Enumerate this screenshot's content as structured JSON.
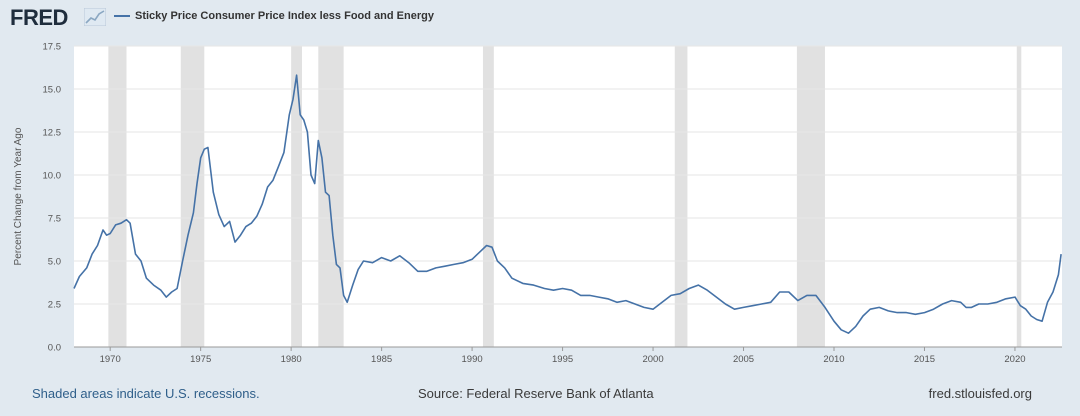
{
  "header": {
    "logo_text": "FRED",
    "logo_icon": "trend-line-icon",
    "legend_label": "Sticky Price Consumer Price Index less Food and Energy"
  },
  "footer": {
    "recession_note": "Shaded areas indicate U.S. recessions.",
    "source": "Source: Federal Reserve Bank of Atlanta",
    "site": "fred.stlouisfed.org"
  },
  "colors": {
    "series": "#4572a7",
    "recession": "#e1e1e1",
    "grid": "#e6e6e6",
    "background": "#e1e9f0",
    "plot_background": "#ffffff"
  },
  "chart_data": {
    "type": "line",
    "title": "",
    "ylabel": "Percent Change from Year Ago",
    "xlabel": "",
    "xlim": [
      1968,
      2022.6
    ],
    "ylim": [
      0,
      17.5
    ],
    "y_ticks": [
      "0.0",
      "2.5",
      "5.0",
      "7.5",
      "10.0",
      "12.5",
      "15.0",
      "17.5"
    ],
    "x_ticks": [
      "1970",
      "1975",
      "1980",
      "1985",
      "1990",
      "1995",
      "2000",
      "2005",
      "2010",
      "2015",
      "2020"
    ],
    "grid": "horizontal",
    "recessions": [
      [
        1969.9,
        1970.9
      ],
      [
        1973.9,
        1975.2
      ],
      [
        1980.0,
        1980.6
      ],
      [
        1981.5,
        1982.9
      ],
      [
        1990.6,
        1991.2
      ],
      [
        2001.2,
        2001.9
      ],
      [
        2007.95,
        2009.5
      ],
      [
        2020.1,
        2020.35
      ]
    ],
    "series": [
      {
        "name": "Sticky Price Consumer Price Index less Food and Energy",
        "x": [
          1968.0,
          1968.3,
          1968.7,
          1969.0,
          1969.3,
          1969.6,
          1969.8,
          1970.0,
          1970.3,
          1970.6,
          1970.9,
          1971.1,
          1971.4,
          1971.7,
          1972.0,
          1972.4,
          1972.8,
          1973.1,
          1973.4,
          1973.7,
          1974.0,
          1974.3,
          1974.6,
          1974.8,
          1975.0,
          1975.2,
          1975.4,
          1975.7,
          1976.0,
          1976.3,
          1976.6,
          1976.9,
          1977.2,
          1977.5,
          1977.8,
          1978.1,
          1978.4,
          1978.7,
          1979.0,
          1979.3,
          1979.6,
          1979.9,
          1980.1,
          1980.3,
          1980.5,
          1980.7,
          1980.9,
          1981.1,
          1981.3,
          1981.5,
          1981.7,
          1981.9,
          1982.1,
          1982.3,
          1982.5,
          1982.7,
          1982.9,
          1983.1,
          1983.4,
          1983.7,
          1984.0,
          1984.5,
          1985.0,
          1985.5,
          1986.0,
          1986.5,
          1987.0,
          1987.5,
          1988.0,
          1988.5,
          1989.0,
          1989.5,
          1990.0,
          1990.4,
          1990.8,
          1991.1,
          1991.4,
          1991.8,
          1992.2,
          1992.8,
          1993.4,
          1994.0,
          1994.5,
          1995.0,
          1995.5,
          1996.0,
          1996.5,
          1997.0,
          1997.5,
          1998.0,
          1998.5,
          1999.0,
          1999.5,
          2000.0,
          2000.5,
          2001.0,
          2001.5,
          2002.0,
          2002.5,
          2003.0,
          2003.5,
          2004.0,
          2004.5,
          2005.0,
          2005.5,
          2006.0,
          2006.5,
          2007.0,
          2007.5,
          2008.0,
          2008.5,
          2009.0,
          2009.5,
          2010.0,
          2010.4,
          2010.8,
          2011.2,
          2011.6,
          2012.0,
          2012.5,
          2013.0,
          2013.5,
          2014.0,
          2014.5,
          2015.0,
          2015.5,
          2016.0,
          2016.5,
          2017.0,
          2017.3,
          2017.6,
          2018.0,
          2018.5,
          2019.0,
          2019.5,
          2020.0,
          2020.3,
          2020.6,
          2020.9,
          2021.2,
          2021.5,
          2021.8,
          2022.1,
          2022.4,
          2022.55
        ],
        "values": [
          3.4,
          4.1,
          4.6,
          5.4,
          5.9,
          6.8,
          6.5,
          6.6,
          7.1,
          7.2,
          7.4,
          7.2,
          5.4,
          5.0,
          4.0,
          3.6,
          3.3,
          2.9,
          3.2,
          3.4,
          5.0,
          6.5,
          7.8,
          9.5,
          11.0,
          11.5,
          11.6,
          9.0,
          7.7,
          7.0,
          7.3,
          6.1,
          6.5,
          7.0,
          7.2,
          7.6,
          8.3,
          9.3,
          9.7,
          10.5,
          11.3,
          13.5,
          14.4,
          15.8,
          13.5,
          13.2,
          12.5,
          10.0,
          9.5,
          12.0,
          11.0,
          9.0,
          8.8,
          6.5,
          4.8,
          4.6,
          3.0,
          2.6,
          3.6,
          4.5,
          5.0,
          4.9,
          5.2,
          5.0,
          5.3,
          4.9,
          4.4,
          4.4,
          4.6,
          4.7,
          4.8,
          4.9,
          5.1,
          5.5,
          5.9,
          5.8,
          5.0,
          4.6,
          4.0,
          3.7,
          3.6,
          3.4,
          3.3,
          3.4,
          3.3,
          3.0,
          3.0,
          2.9,
          2.8,
          2.6,
          2.7,
          2.5,
          2.3,
          2.2,
          2.6,
          3.0,
          3.1,
          3.4,
          3.6,
          3.3,
          2.9,
          2.5,
          2.2,
          2.3,
          2.4,
          2.5,
          2.6,
          3.2,
          3.2,
          2.7,
          3.0,
          3.0,
          2.3,
          1.5,
          1.0,
          0.8,
          1.2,
          1.8,
          2.2,
          2.3,
          2.1,
          2.0,
          2.0,
          1.9,
          2.0,
          2.2,
          2.5,
          2.7,
          2.6,
          2.3,
          2.3,
          2.5,
          2.5,
          2.6,
          2.8,
          2.9,
          2.4,
          2.2,
          1.8,
          1.6,
          1.5,
          2.6,
          3.2,
          4.2,
          5.4
        ]
      }
    ]
  }
}
